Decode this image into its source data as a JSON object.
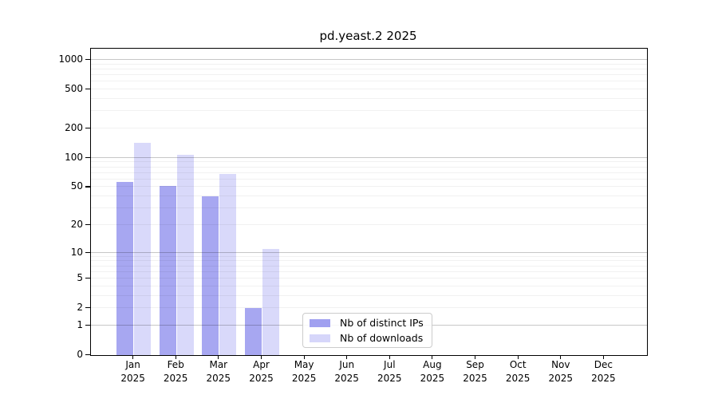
{
  "chart_data": {
    "type": "bar",
    "title": "pd.yeast.2 2025",
    "categories": [
      "Jan",
      "Feb",
      "Mar",
      "Apr",
      "May",
      "Jun",
      "Jul",
      "Aug",
      "Sep",
      "Oct",
      "Nov",
      "Dec"
    ],
    "category_sublabel": "2025",
    "series": [
      {
        "name": "Nb of distinct IPs",
        "color": "#a0a0f0",
        "values": [
          57,
          51,
          40,
          2,
          0,
          0,
          0,
          0,
          0,
          0,
          0,
          0
        ]
      },
      {
        "name": "Nb of downloads",
        "color": "#d6d6fa",
        "values": [
          142,
          108,
          69,
          11,
          0,
          0,
          0,
          0,
          0,
          0,
          0,
          0
        ]
      }
    ],
    "y_axis": {
      "scale": "log10(1+x)",
      "tick_values": [
        0,
        1,
        2,
        5,
        10,
        20,
        50,
        100,
        200,
        500,
        1000
      ],
      "major_gridline_values": [
        1,
        10,
        100,
        1000
      ],
      "ylim": [
        0,
        1300
      ],
      "grid": "on"
    },
    "legend": {
      "position": "inside-bottom-center",
      "entries": [
        "Nb of distinct IPs",
        "Nb of downloads"
      ]
    }
  }
}
